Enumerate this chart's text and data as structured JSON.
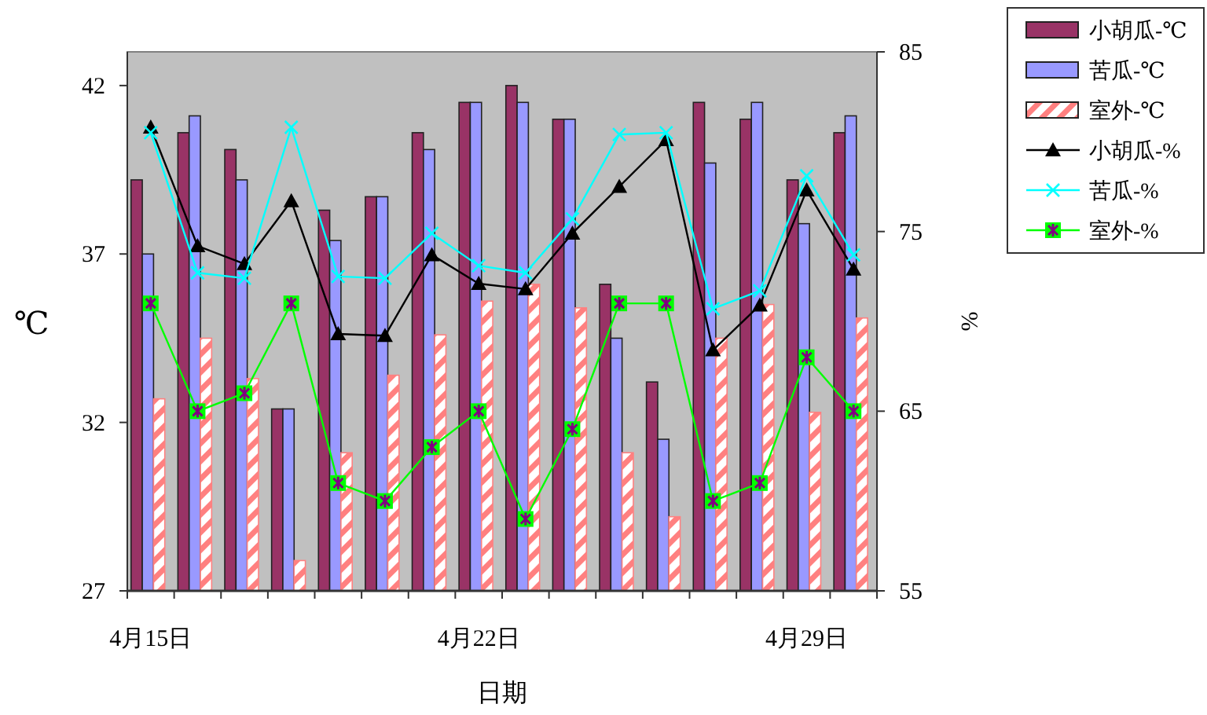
{
  "chart_data": {
    "type": "bar",
    "xlabel": "日期",
    "ylabel": "℃",
    "y2label": "%",
    "categories": [
      "4月15日",
      null,
      null,
      null,
      null,
      null,
      null,
      "4月22日",
      null,
      null,
      null,
      null,
      null,
      null,
      "4月29日",
      null
    ],
    "series": [
      {
        "name": "小胡瓜-℃",
        "color": "#993366",
        "values": [
          39.2,
          40.6,
          40.1,
          32.4,
          38.3,
          38.7,
          40.6,
          41.5,
          42.0,
          41.0,
          36.1,
          33.2,
          41.5,
          41.0,
          39.2,
          40.6
        ]
      },
      {
        "name": "苦瓜-℃",
        "color": "#9999ff",
        "values": [
          37.0,
          41.1,
          39.2,
          32.4,
          37.4,
          38.7,
          40.1,
          41.5,
          41.5,
          41.0,
          34.5,
          31.5,
          39.7,
          41.5,
          37.9,
          41.1
        ]
      },
      {
        "name": "室外-℃",
        "color": "#ff8080",
        "values": [
          32.7,
          34.5,
          33.3,
          27.9,
          31.1,
          33.4,
          34.6,
          35.6,
          36.1,
          35.4,
          31.1,
          29.2,
          34.5,
          35.5,
          32.3,
          35.1
        ]
      },
      {
        "name": "小胡瓜-%",
        "type": "line",
        "axis": "y2",
        "color": "#000000",
        "marker": "triangle",
        "values": [
          80.8,
          74.2,
          73.2,
          76.7,
          69.3,
          69.2,
          73.7,
          72.1,
          71.8,
          74.9,
          77.5,
          80.1,
          68.4,
          70.9,
          77.3,
          72.9
        ]
      },
      {
        "name": "苦瓜-%",
        "type": "line",
        "axis": "y2",
        "color": "#00ffff",
        "marker": "cross",
        "values": [
          80.5,
          72.7,
          72.4,
          80.8,
          72.5,
          72.4,
          74.9,
          73.1,
          72.7,
          75.7,
          80.4,
          80.5,
          70.7,
          71.7,
          78.1,
          73.7
        ]
      },
      {
        "name": "室外-%",
        "type": "line",
        "axis": "y2",
        "color": "#00ff00",
        "marker": "square",
        "values": [
          71,
          65,
          66,
          71,
          61,
          60,
          63,
          65,
          59,
          64,
          71,
          71,
          60,
          61,
          68,
          65
        ]
      }
    ],
    "ylim": [
      27,
      43
    ],
    "yticks": [
      27,
      32,
      37,
      42
    ],
    "y2lim": [
      55,
      85
    ],
    "y2ticks": [
      55,
      65,
      75,
      85
    ],
    "grid": false,
    "legend": "top right"
  }
}
